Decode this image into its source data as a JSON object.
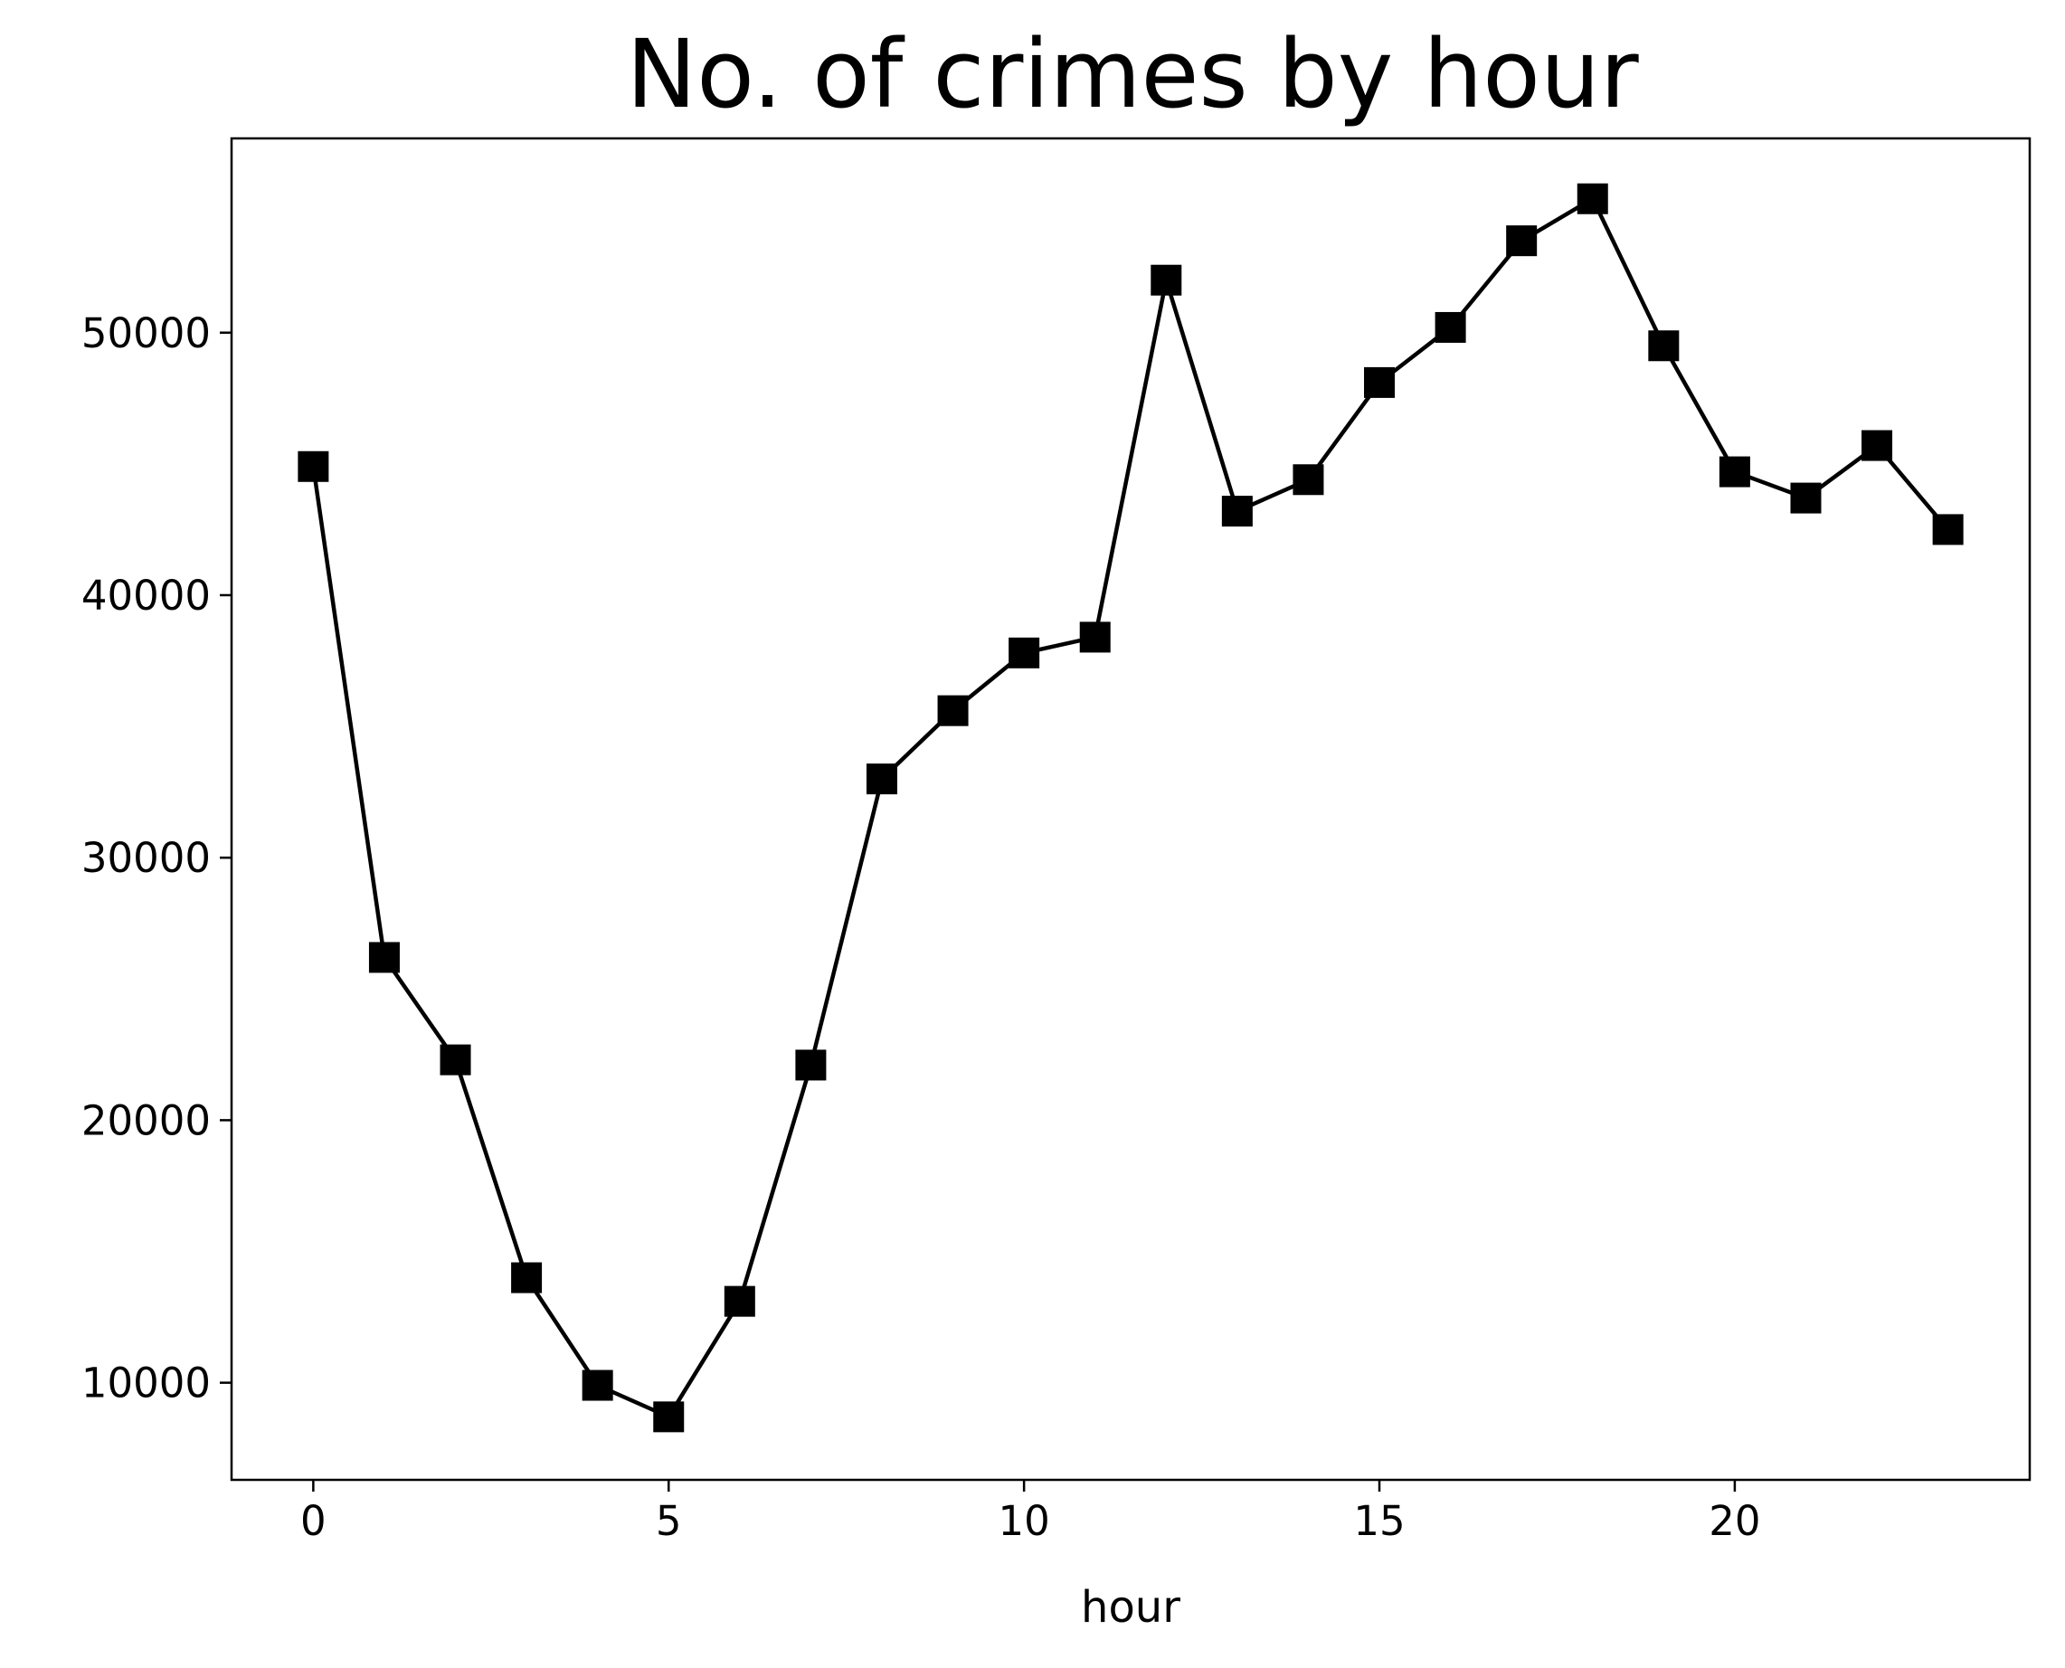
{
  "chart_data": {
    "type": "line",
    "title": "No. of crimes by hour",
    "xlabel": "hour",
    "ylabel": "",
    "x": [
      0,
      1,
      2,
      3,
      4,
      5,
      6,
      7,
      8,
      9,
      10,
      11,
      12,
      13,
      14,
      15,
      16,
      17,
      18,
      19,
      20,
      21,
      22,
      23
    ],
    "series": [
      {
        "values": [
          44900,
          26200,
          22300,
          14000,
          9900,
          8700,
          13100,
          22100,
          33000,
          35600,
          37800,
          38400,
          52000,
          43200,
          44400,
          48100,
          50200,
          53500,
          55100,
          49500,
          44700,
          43700,
          45700,
          42500
        ],
        "color": "#000000",
        "marker": "square"
      }
    ],
    "xticks": [
      0,
      5,
      10,
      15,
      20
    ],
    "yticks": [
      10000,
      20000,
      30000,
      40000,
      50000
    ],
    "xlim": [
      -1.15,
      24.15
    ],
    "ylim": [
      6300,
      57400
    ],
    "grid": false,
    "legend": "none"
  }
}
